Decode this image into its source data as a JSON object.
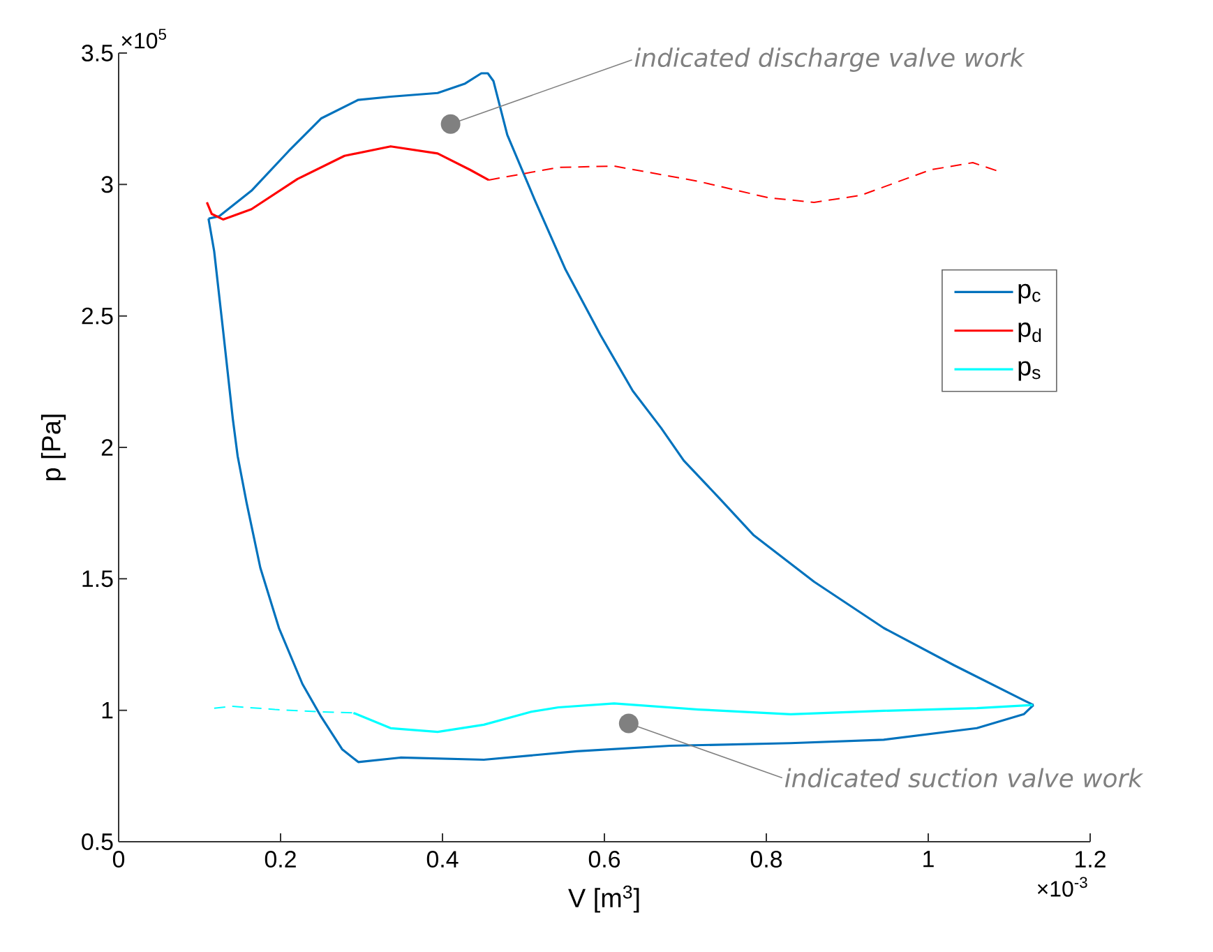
{
  "chart_data": {
    "type": "line",
    "xlabel": "V [m$^{3}$]",
    "ylabel": "p [Pa]",
    "xlim": [
      0,
      1.2
    ],
    "ylim": [
      0.5,
      3.5
    ],
    "xticks": [
      0,
      0.2,
      0.4,
      0.6,
      0.8,
      1,
      1.2
    ],
    "yticks": [
      0.5,
      1,
      1.5,
      2,
      2.5,
      3,
      3.5
    ],
    "legend": "right",
    "marker": "none",
    "series": [
      {
        "name": "p$_{c}$",
        "color": "#0072bd",
        "line_style": "solid",
        "x": [
          0.111,
          0.124,
          0.164,
          0.21,
          0.25,
          0.296,
          0.336,
          0.394,
          0.428,
          0.448,
          0.456,
          0.463,
          0.48,
          0.514,
          0.552,
          0.595,
          0.635,
          0.67,
          0.698,
          0.744,
          0.784,
          0.859,
          0.945,
          1.032,
          1.118,
          1.13
        ],
        "values": [
          2.87,
          2.879,
          2.976,
          3.127,
          3.251,
          3.322,
          3.334,
          3.348,
          3.384,
          3.423,
          3.423,
          3.393,
          3.189,
          2.941,
          2.676,
          2.428,
          2.215,
          2.074,
          1.95,
          1.8,
          1.667,
          1.489,
          1.313,
          1.171,
          1.038,
          1.02
        ]
      },
      {
        "color": "#0072bd",
        "line_style": "solid",
        "x": [
          1.13,
          1.118,
          1.06,
          0.945,
          0.83,
          0.681,
          0.566,
          0.451,
          0.348,
          0.296,
          0.276,
          0.25,
          0.227,
          0.198,
          0.175,
          0.158,
          0.147,
          0.141,
          0.129,
          0.118,
          0.111
        ],
        "values": [
          1.02,
          0.985,
          0.932,
          0.888,
          0.875,
          0.865,
          0.844,
          0.812,
          0.82,
          0.803,
          0.852,
          0.976,
          1.1,
          1.313,
          1.542,
          1.79,
          1.967,
          2.109,
          2.445,
          2.746,
          2.87
        ]
      },
      {
        "name": "p$_{d}$",
        "color": "#ff0000",
        "line_style": "solid",
        "x": [
          0.109,
          0.115,
          0.129,
          0.164,
          0.221,
          0.279,
          0.336,
          0.394,
          0.434,
          0.457
        ],
        "values": [
          2.932,
          2.888,
          2.867,
          2.906,
          3.021,
          3.109,
          3.145,
          3.118,
          3.056,
          3.017
        ]
      },
      {
        "color": "#ff0000",
        "line_style": "dashed",
        "x": [
          0.457,
          0.543,
          0.612,
          0.716,
          0.802,
          0.859,
          0.917,
          1.003,
          1.055,
          1.089
        ],
        "values": [
          3.017,
          3.065,
          3.07,
          3.012,
          2.95,
          2.932,
          2.959,
          3.056,
          3.083,
          3.048
        ]
      },
      {
        "color": "#00ffff",
        "line_style": "dashed",
        "x": [
          0.118,
          0.141,
          0.193,
          0.25,
          0.29
        ],
        "values": [
          1.008,
          1.015,
          1.003,
          0.994,
          0.99
        ]
      },
      {
        "name": "p$_{s}$",
        "color": "#00ffff",
        "line_style": "solid",
        "x": [
          0.29,
          0.336,
          0.394,
          0.451,
          0.509,
          0.543,
          0.612,
          0.716,
          0.83,
          0.945,
          1.06,
          1.129
        ],
        "values": [
          0.99,
          0.932,
          0.918,
          0.945,
          0.994,
          1.011,
          1.026,
          1.003,
          0.985,
          0.998,
          1.008,
          1.02
        ]
      }
    ],
    "annotations": [
      {
        "text": "*indicated discharge valve work*",
        "x": 0.41,
        "y": 3.23
      },
      {
        "text": "*indicated suction valve work*",
        "x": 0.63,
        "y": 0.95
      },
      "×10$^{5}$",
      "×10$^{-3}$"
    ]
  }
}
